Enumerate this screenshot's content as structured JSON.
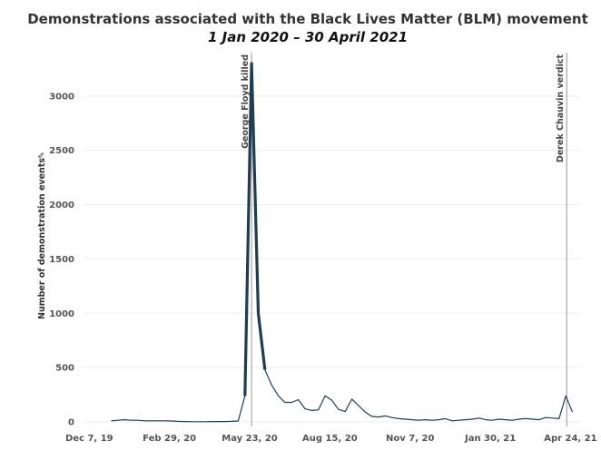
{
  "chart_data": {
    "type": "line",
    "title": "Demonstrations associated with the Black Lives Matter (BLM) movement",
    "subtitle": "1 Jan 2020 – 30 April 2021",
    "xlabel": "",
    "ylabel": "Number of demonstration events",
    "ylabel_marker": "✎",
    "xlim": [
      "2019-12-01",
      "2021-05-05"
    ],
    "ylim": [
      0,
      3400
    ],
    "x_ticks": [
      "2019-12-07",
      "2020-02-29",
      "2020-05-23",
      "2020-08-15",
      "2020-11-07",
      "2021-01-30",
      "2021-04-24"
    ],
    "x_tick_labels": [
      "Dec 7, 19",
      "Feb 29, 20",
      "May 23, 20",
      "Aug 15, 20",
      "Nov 7, 20",
      "Jan 30, 21",
      "Apr 24, 21"
    ],
    "y_ticks": [
      0,
      500,
      1000,
      1500,
      2000,
      2500,
      3000
    ],
    "y_tick_labels": [
      "0",
      "500",
      "1000",
      "1500",
      "2000",
      "2500",
      "3000"
    ],
    "grid": "horizontal",
    "line_color": "#1f3d4f",
    "series": [
      {
        "x": [
          "2019-12-30",
          "2020-01-06",
          "2020-01-13",
          "2020-01-20",
          "2020-01-27",
          "2020-02-03",
          "2020-02-10",
          "2020-02-17",
          "2020-02-24",
          "2020-03-02",
          "2020-03-09",
          "2020-03-16",
          "2020-03-23",
          "2020-03-30",
          "2020-04-06",
          "2020-04-13",
          "2020-04-20",
          "2020-04-27",
          "2020-05-04",
          "2020-05-11",
          "2020-05-18",
          "2020-05-25",
          "2020-06-01",
          "2020-06-08",
          "2020-06-15",
          "2020-06-22",
          "2020-06-29",
          "2020-07-06",
          "2020-07-13",
          "2020-07-20",
          "2020-07-27",
          "2020-08-03",
          "2020-08-10",
          "2020-08-17",
          "2020-08-24",
          "2020-08-31",
          "2020-09-07",
          "2020-09-14",
          "2020-09-21",
          "2020-09-28",
          "2020-10-05",
          "2020-10-12",
          "2020-10-19",
          "2020-10-26",
          "2020-11-02",
          "2020-11-09",
          "2020-11-16",
          "2020-11-23",
          "2020-11-30",
          "2020-12-07",
          "2020-12-14",
          "2020-12-21",
          "2020-12-28",
          "2021-01-04",
          "2021-01-11",
          "2021-01-18",
          "2021-01-25",
          "2021-02-01",
          "2021-02-08",
          "2021-02-15",
          "2021-02-22",
          "2021-03-01",
          "2021-03-08",
          "2021-03-15",
          "2021-03-22",
          "2021-03-29",
          "2021-04-05",
          "2021-04-12",
          "2021-04-19",
          "2021-04-26"
        ],
        "y": [
          10,
          15,
          20,
          15,
          15,
          10,
          10,
          10,
          10,
          8,
          5,
          3,
          2,
          2,
          2,
          3,
          3,
          3,
          5,
          8,
          240,
          3300,
          1000,
          480,
          340,
          240,
          180,
          180,
          205,
          120,
          105,
          110,
          240,
          200,
          115,
          95,
          210,
          150,
          90,
          50,
          45,
          55,
          40,
          30,
          25,
          20,
          15,
          20,
          15,
          20,
          30,
          10,
          15,
          20,
          25,
          35,
          20,
          15,
          25,
          20,
          15,
          25,
          30,
          25,
          20,
          40,
          35,
          30,
          240,
          90
        ]
      }
    ],
    "events": [
      {
        "date": "2020-05-25",
        "label": "George Floyd killed"
      },
      {
        "date": "2021-04-20",
        "label": "Derek Chauvin verdict"
      }
    ]
  }
}
